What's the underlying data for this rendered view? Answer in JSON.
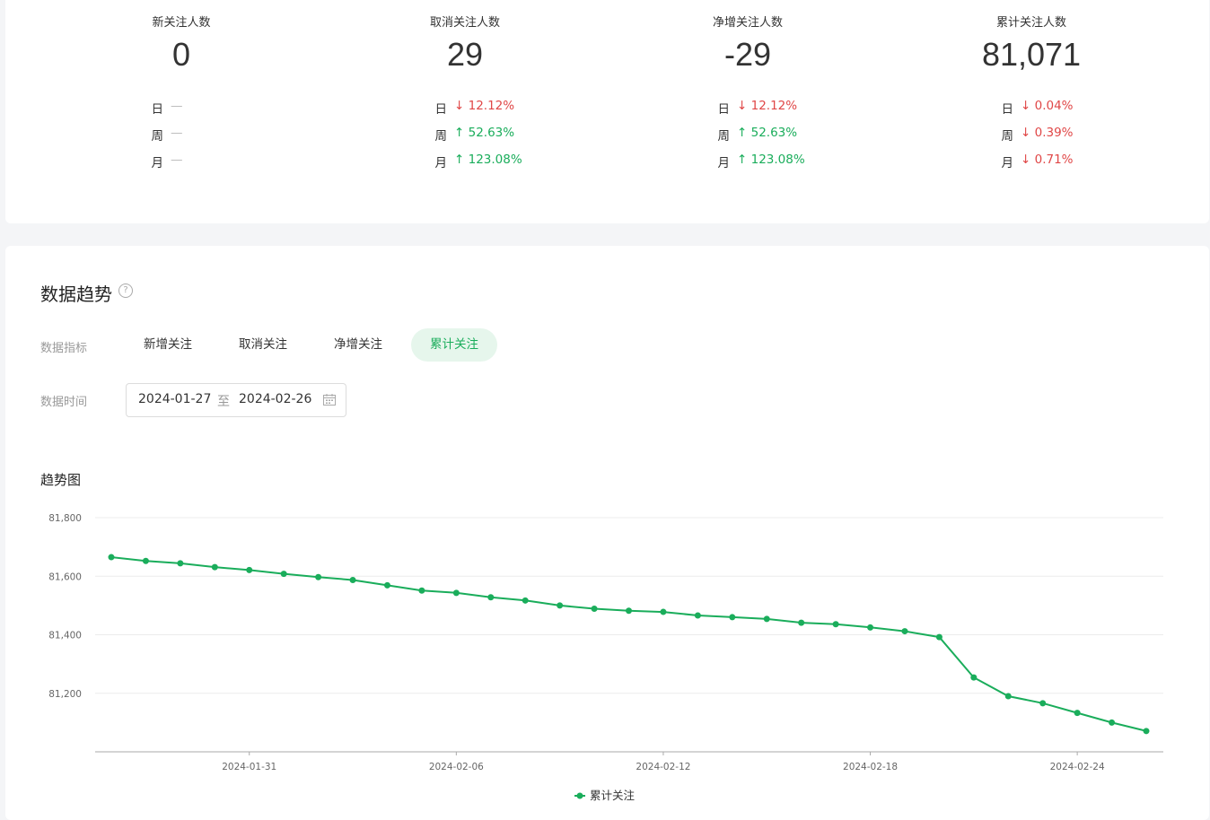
{
  "stats": [
    {
      "title": "新关注人数",
      "value": "0",
      "comparisons": [
        {
          "label": "日",
          "value": "—",
          "trend": "none"
        },
        {
          "label": "周",
          "value": "—",
          "trend": "none"
        },
        {
          "label": "月",
          "value": "—",
          "trend": "none"
        }
      ]
    },
    {
      "title": "取消关注人数",
      "value": "29",
      "comparisons": [
        {
          "label": "日",
          "value": "↓ 12.12%",
          "trend": "down"
        },
        {
          "label": "周",
          "value": "↑ 52.63%",
          "trend": "up"
        },
        {
          "label": "月",
          "value": "↑ 123.08%",
          "trend": "up"
        }
      ]
    },
    {
      "title": "净增关注人数",
      "value": "-29",
      "comparisons": [
        {
          "label": "日",
          "value": "↓ 12.12%",
          "trend": "down"
        },
        {
          "label": "周",
          "value": "↑ 52.63%",
          "trend": "up"
        },
        {
          "label": "月",
          "value": "↑ 123.08%",
          "trend": "up"
        }
      ]
    },
    {
      "title": "累计关注人数",
      "value": "81,071",
      "comparisons": [
        {
          "label": "日",
          "value": "↓ 0.04%",
          "trend": "down"
        },
        {
          "label": "周",
          "value": "↓ 0.39%",
          "trend": "down"
        },
        {
          "label": "月",
          "value": "↓ 0.71%",
          "trend": "down"
        }
      ]
    }
  ],
  "trend": {
    "title": "数据趋势",
    "help_icon": "question-circle-icon",
    "metric_label": "数据指标",
    "metrics": [
      "新增关注",
      "取消关注",
      "净增关注",
      "累计关注"
    ],
    "active_metric": "累计关注",
    "time_label": "数据时间",
    "date_start": "2024-01-27",
    "date_sep": "至",
    "date_end": "2024-02-26",
    "calendar_icon": "calendar-icon",
    "chart_title": "趋势图"
  },
  "colors": {
    "accent": "#1aad5b",
    "down": "#e04747",
    "up": "#1aad5b",
    "active_bg": "#e6f6ec"
  },
  "chart_data": {
    "type": "line",
    "x": [
      "2024-01-27",
      "2024-01-28",
      "2024-01-29",
      "2024-01-30",
      "2024-01-31",
      "2024-02-01",
      "2024-02-02",
      "2024-02-03",
      "2024-02-04",
      "2024-02-05",
      "2024-02-06",
      "2024-02-07",
      "2024-02-08",
      "2024-02-09",
      "2024-02-10",
      "2024-02-11",
      "2024-02-12",
      "2024-02-13",
      "2024-02-14",
      "2024-02-15",
      "2024-02-16",
      "2024-02-17",
      "2024-02-18",
      "2024-02-19",
      "2024-02-20",
      "2024-02-21",
      "2024-02-22",
      "2024-02-23",
      "2024-02-24",
      "2024-02-25",
      "2024-02-26"
    ],
    "series": [
      {
        "name": "累计关注",
        "values": [
          81665,
          81652,
          81644,
          81631,
          81621,
          81608,
          81597,
          81587,
          81569,
          81551,
          81543,
          81528,
          81517,
          81500,
          81489,
          81482,
          81478,
          81466,
          81460,
          81454,
          81441,
          81436,
          81425,
          81412,
          81392,
          81254,
          81190,
          81166,
          81133,
          81100,
          81071
        ]
      }
    ],
    "y_ticks": [
      81200,
      81400,
      81600,
      81800
    ],
    "y_tick_labels": [
      "81,200",
      "81,400",
      "81,600",
      "81,800"
    ],
    "x_tick_labels": [
      "2024-01-31",
      "2024-02-06",
      "2024-02-12",
      "2024-02-18",
      "2024-02-24"
    ],
    "ylim": [
      81000,
      81800
    ],
    "grid": true,
    "legend": "bottom-center",
    "color": "#1aad5b"
  }
}
